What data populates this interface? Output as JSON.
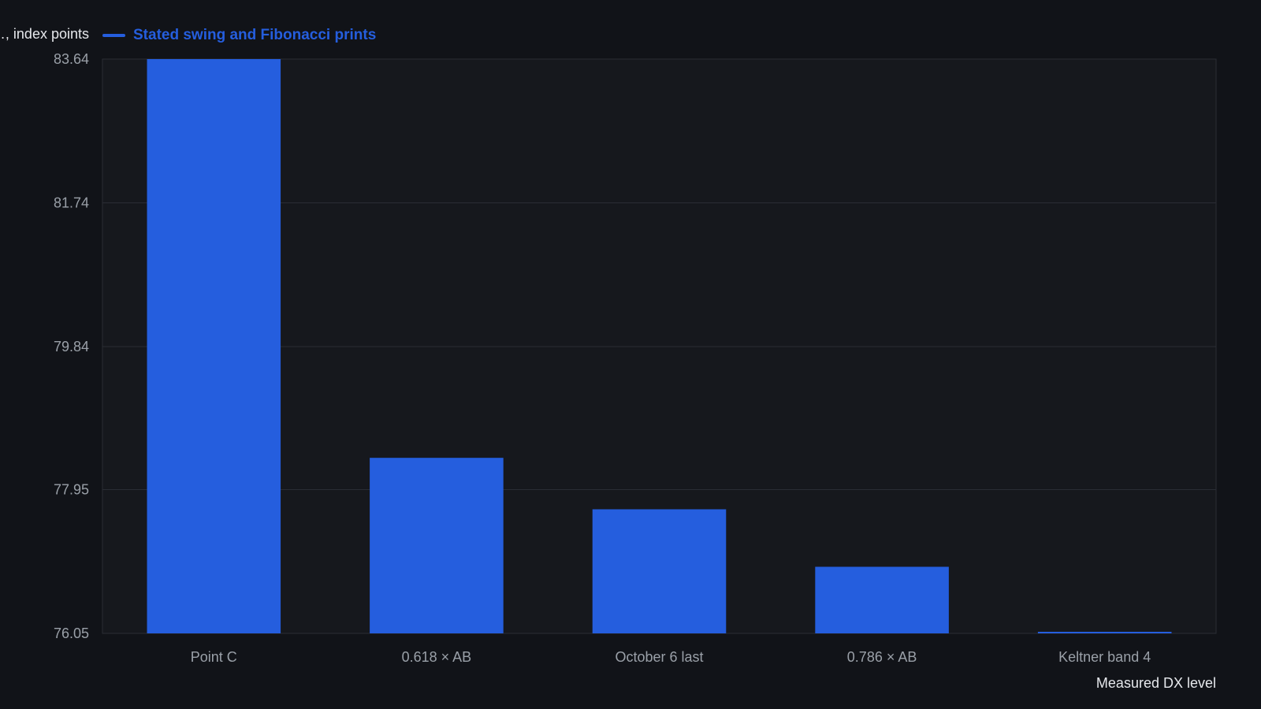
{
  "colors": {
    "background": "#111318",
    "plot_background": "#16181d",
    "bar": "#255ede",
    "grid": "#2a2d34",
    "axis_text": "#9aa0a8",
    "label_text": "#e6e8ec"
  },
  "chart_data": {
    "type": "bar",
    "title": "",
    "xlabel": "Measured DX level",
    "ylabel": "…, index points",
    "legend": {
      "position": "top-left",
      "label": "Stated swing and Fibonacci prints"
    },
    "categories": [
      "Point C",
      "0.618 × AB",
      "October 6 last",
      "0.786 × AB",
      "Keltner band 4"
    ],
    "series": [
      {
        "name": "Stated swing and Fibonacci prints",
        "values": [
          83.64,
          78.37,
          77.69,
          76.93,
          76.04
        ]
      }
    ],
    "yticks": [
      "76.05",
      "77.95",
      "79.84",
      "81.74",
      "83.64"
    ],
    "ylim": [
      76.05,
      83.64
    ],
    "grid": true
  }
}
